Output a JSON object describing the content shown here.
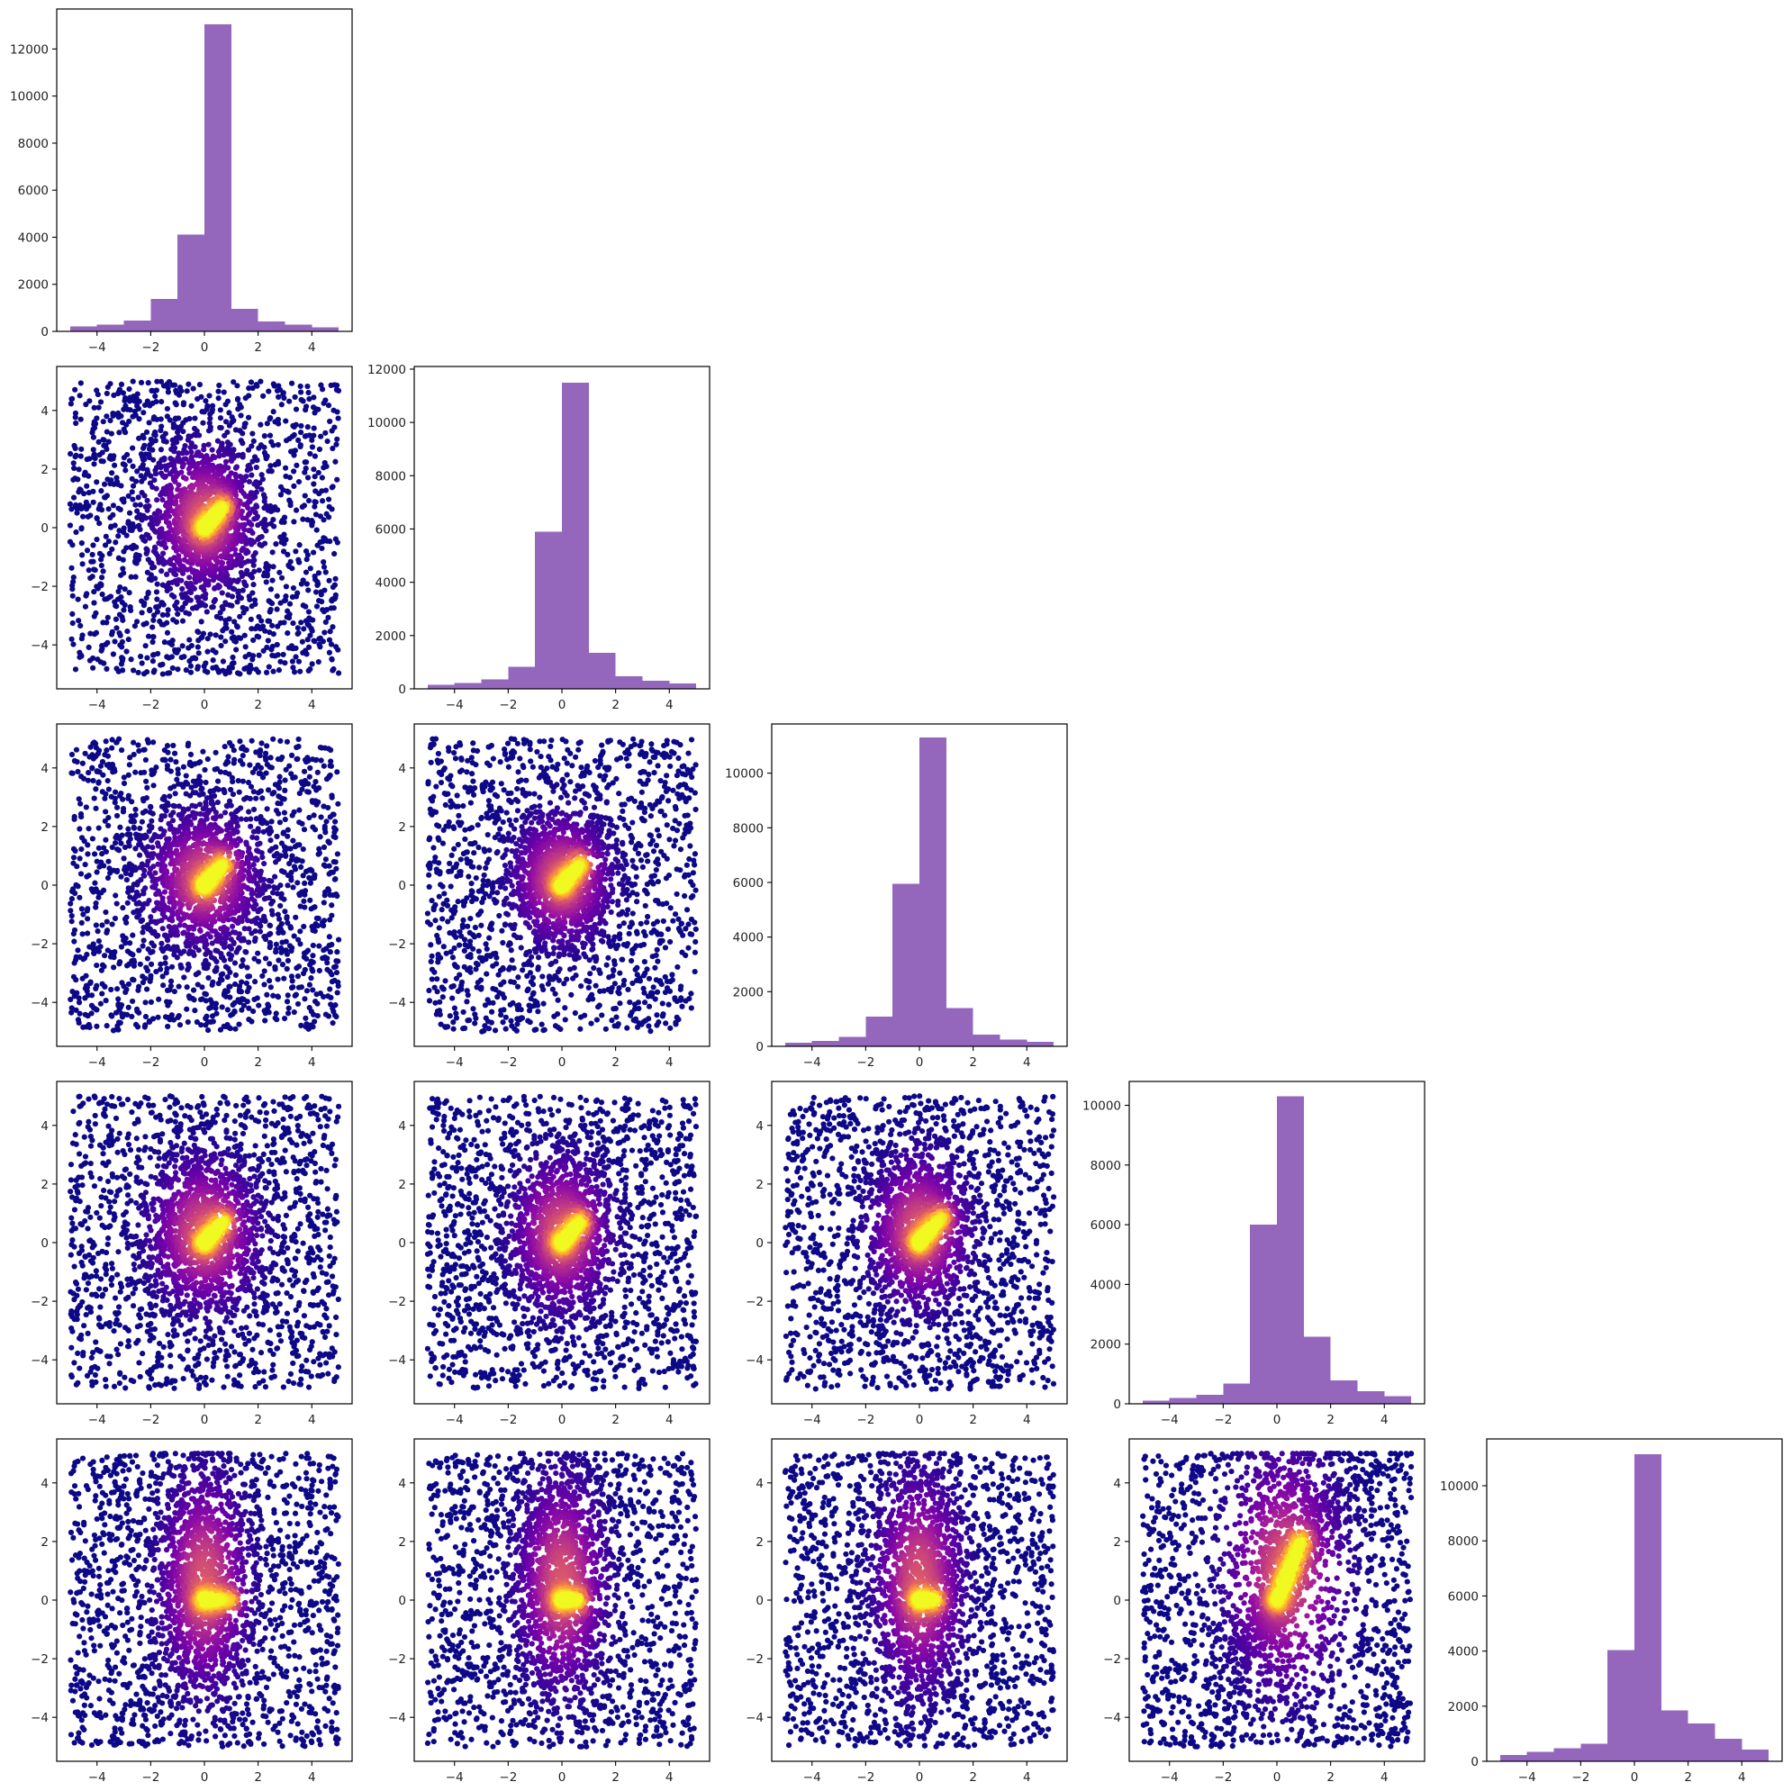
{
  "figure": {
    "kind": "corner-plot",
    "grid": "5x5 lower triangle"
  },
  "colors": {
    "hist_fill": "#9467bd",
    "scatter_colormap": "plasma",
    "colormap_stops": [
      "#0d0887",
      "#41049d",
      "#6a00a8",
      "#8f0da4",
      "#b12a90",
      "#cc4778",
      "#e16462",
      "#f2844b",
      "#fca636",
      "#fcce25",
      "#f0f921"
    ]
  },
  "chart_data": [
    {
      "panel": "row1-col1",
      "type": "bar",
      "subtype": "histogram",
      "bin_edges": [
        -5,
        -4,
        -3,
        -2,
        -1,
        0,
        1,
        2,
        3,
        4,
        5
      ],
      "values": [
        210,
        290,
        450,
        1380,
        4120,
        13050,
        950,
        420,
        280,
        170
      ],
      "xlim": [
        -5.5,
        5.5
      ],
      "ylim": [
        0,
        13700
      ],
      "xticks": [
        -4,
        -2,
        0,
        2,
        4
      ],
      "xtick_labels": [
        "−4",
        "−2",
        "0",
        "2",
        "4"
      ],
      "yticks": [
        0,
        2000,
        4000,
        6000,
        8000,
        10000,
        12000
      ],
      "ytick_labels": [
        "0",
        "2000",
        "4000",
        "6000",
        "8000",
        "10000",
        "12000"
      ]
    },
    {
      "panel": "row2-col1",
      "type": "scatter",
      "xlim": [
        -5.5,
        5.5
      ],
      "ylim": [
        -5.5,
        5.5
      ],
      "xticks": [
        -4,
        -2,
        0,
        2,
        4
      ],
      "xtick_labels": [
        "−4",
        "−2",
        "0",
        "2",
        "4"
      ],
      "yticks": [
        -4,
        -2,
        0,
        2,
        4
      ],
      "ytick_labels": [
        "−4",
        "−2",
        "0",
        "2",
        "4"
      ],
      "density": {
        "cx": 0.0,
        "cy": 0.3,
        "sx": 1.0,
        "sy": 1.3,
        "kink": {
          "dir": [
            1,
            1
          ],
          "length": 1.0
        }
      }
    },
    {
      "panel": "row2-col2",
      "type": "bar",
      "subtype": "histogram",
      "bin_edges": [
        -5,
        -4,
        -3,
        -2,
        -1,
        0,
        1,
        2,
        3,
        4,
        5
      ],
      "values": [
        160,
        220,
        360,
        820,
        5900,
        11500,
        1350,
        480,
        300,
        210
      ],
      "xlim": [
        -5.5,
        5.5
      ],
      "ylim": [
        0,
        12100
      ],
      "xticks": [
        -4,
        -2,
        0,
        2,
        4
      ],
      "xtick_labels": [
        "−4",
        "−2",
        "0",
        "2",
        "4"
      ],
      "yticks": [
        0,
        2000,
        4000,
        6000,
        8000,
        10000,
        12000
      ],
      "ytick_labels": [
        "0",
        "2000",
        "4000",
        "6000",
        "8000",
        "10000",
        "12000"
      ]
    },
    {
      "panel": "row3-col1",
      "type": "scatter",
      "xlim": [
        -5.5,
        5.5
      ],
      "ylim": [
        -5.5,
        5.5
      ],
      "xticks": [
        -4,
        -2,
        0,
        2,
        4
      ],
      "xtick_labels": [
        "−4",
        "−2",
        "0",
        "2",
        "4"
      ],
      "yticks": [
        -4,
        -2,
        0,
        2,
        4
      ],
      "ytick_labels": [
        "−4",
        "−2",
        "0",
        "2",
        "4"
      ],
      "density": {
        "cx": 0.0,
        "cy": 0.2,
        "sx": 1.1,
        "sy": 1.2,
        "kink": {
          "dir": [
            1,
            1
          ],
          "length": 1.0
        }
      }
    },
    {
      "panel": "row3-col2",
      "type": "scatter",
      "xlim": [
        -5.5,
        5.5
      ],
      "ylim": [
        -5.5,
        5.5
      ],
      "xticks": [
        -4,
        -2,
        0,
        2,
        4
      ],
      "xtick_labels": [
        "−4",
        "−2",
        "0",
        "2",
        "4"
      ],
      "yticks": [
        -4,
        -2,
        0,
        2,
        4
      ],
      "ytick_labels": [
        "−4",
        "−2",
        "0",
        "2",
        "4"
      ],
      "density": {
        "cx": 0.0,
        "cy": 0.2,
        "sx": 1.0,
        "sy": 1.2,
        "kink": {
          "dir": [
            1,
            1
          ],
          "length": 1.0
        }
      }
    },
    {
      "panel": "row3-col3",
      "type": "bar",
      "subtype": "histogram",
      "bin_edges": [
        -5,
        -4,
        -3,
        -2,
        -1,
        0,
        1,
        2,
        3,
        4,
        5
      ],
      "values": [
        130,
        200,
        340,
        1080,
        5950,
        11300,
        1400,
        430,
        240,
        160
      ],
      "xlim": [
        -5.5,
        5.5
      ],
      "ylim": [
        0,
        11800
      ],
      "xticks": [
        -4,
        -2,
        0,
        2,
        4
      ],
      "xtick_labels": [
        "−4",
        "−2",
        "0",
        "2",
        "4"
      ],
      "yticks": [
        0,
        2000,
        4000,
        6000,
        8000,
        10000
      ],
      "ytick_labels": [
        "0",
        "2000",
        "4000",
        "6000",
        "8000",
        "10000"
      ]
    },
    {
      "panel": "row4-col1",
      "type": "scatter",
      "xlim": [
        -5.5,
        5.5
      ],
      "ylim": [
        -5.5,
        5.5
      ],
      "xticks": [
        -4,
        -2,
        0,
        2,
        4
      ],
      "xtick_labels": [
        "−4",
        "−2",
        "0",
        "2",
        "4"
      ],
      "yticks": [
        -4,
        -2,
        0,
        2,
        4
      ],
      "ytick_labels": [
        "−4",
        "−2",
        "0",
        "2",
        "4"
      ],
      "density": {
        "cx": 0.0,
        "cy": 0.3,
        "sx": 1.1,
        "sy": 1.4,
        "kink": {
          "dir": [
            1,
            1
          ],
          "length": 1.0
        }
      }
    },
    {
      "panel": "row4-col2",
      "type": "scatter",
      "xlim": [
        -5.5,
        5.5
      ],
      "ylim": [
        -5.5,
        5.5
      ],
      "xticks": [
        -4,
        -2,
        0,
        2,
        4
      ],
      "xtick_labels": [
        "−4",
        "−2",
        "0",
        "2",
        "4"
      ],
      "yticks": [
        -4,
        -2,
        0,
        2,
        4
      ],
      "ytick_labels": [
        "−4",
        "−2",
        "0",
        "2",
        "4"
      ],
      "density": {
        "cx": 0.0,
        "cy": 0.3,
        "sx": 1.0,
        "sy": 1.4,
        "kink": {
          "dir": [
            1,
            1
          ],
          "length": 1.0
        }
      }
    },
    {
      "panel": "row4-col3",
      "type": "scatter",
      "xlim": [
        -5.5,
        5.5
      ],
      "ylim": [
        -5.5,
        5.5
      ],
      "xticks": [
        -4,
        -2,
        0,
        2,
        4
      ],
      "xtick_labels": [
        "−4",
        "−2",
        "0",
        "2",
        "4"
      ],
      "yticks": [
        -4,
        -2,
        0,
        2,
        4
      ],
      "ytick_labels": [
        "−4",
        "−2",
        "0",
        "2",
        "4"
      ],
      "density": {
        "cx": 0.0,
        "cy": 0.4,
        "sx": 1.0,
        "sy": 1.4,
        "kink": {
          "dir": [
            1,
            1
          ],
          "length": 1.2
        }
      }
    },
    {
      "panel": "row4-col4",
      "type": "bar",
      "subtype": "histogram",
      "bin_edges": [
        -5,
        -4,
        -3,
        -2,
        -1,
        0,
        1,
        2,
        3,
        4,
        5
      ],
      "values": [
        110,
        190,
        300,
        680,
        6000,
        10300,
        2250,
        780,
        420,
        250
      ],
      "xlim": [
        -5.5,
        5.5
      ],
      "ylim": [
        0,
        10800
      ],
      "xticks": [
        -4,
        -2,
        0,
        2,
        4
      ],
      "xtick_labels": [
        "−4",
        "−2",
        "0",
        "2",
        "4"
      ],
      "yticks": [
        0,
        2000,
        4000,
        6000,
        8000,
        10000
      ],
      "ytick_labels": [
        "0",
        "2000",
        "4000",
        "6000",
        "8000",
        "10000"
      ]
    },
    {
      "panel": "row5-col1",
      "type": "scatter",
      "xlim": [
        -5.5,
        5.5
      ],
      "ylim": [
        -5.5,
        5.5
      ],
      "xticks": [
        -4,
        -2,
        0,
        2,
        4
      ],
      "xtick_labels": [
        "−4",
        "−2",
        "0",
        "2",
        "4"
      ],
      "yticks": [
        -4,
        -2,
        0,
        2,
        4
      ],
      "ytick_labels": [
        "−4",
        "−2",
        "0",
        "2",
        "4"
      ],
      "density": {
        "cx": 0.0,
        "cy": 0.6,
        "sx": 0.9,
        "sy": 2.0,
        "kink": {
          "dir": [
            1,
            0
          ],
          "length": 1.0
        }
      }
    },
    {
      "panel": "row5-col2",
      "type": "scatter",
      "xlim": [
        -5.5,
        5.5
      ],
      "ylim": [
        -5.5,
        5.5
      ],
      "xticks": [
        -4,
        -2,
        0,
        2,
        4
      ],
      "xtick_labels": [
        "−4",
        "−2",
        "0",
        "2",
        "4"
      ],
      "yticks": [
        -4,
        -2,
        0,
        2,
        4
      ],
      "ytick_labels": [
        "−4",
        "−2",
        "0",
        "2",
        "4"
      ],
      "density": {
        "cx": 0.0,
        "cy": 0.6,
        "sx": 0.9,
        "sy": 2.0,
        "kink": {
          "dir": [
            1,
            0
          ],
          "length": 0.6
        }
      }
    },
    {
      "panel": "row5-col3",
      "type": "scatter",
      "xlim": [
        -5.5,
        5.5
      ],
      "ylim": [
        -5.5,
        5.5
      ],
      "xticks": [
        -4,
        -2,
        0,
        2,
        4
      ],
      "xtick_labels": [
        "−4",
        "−2",
        "0",
        "2",
        "4"
      ],
      "yticks": [
        -4,
        -2,
        0,
        2,
        4
      ],
      "ytick_labels": [
        "−4",
        "−2",
        "0",
        "2",
        "4"
      ],
      "density": {
        "cx": 0.0,
        "cy": 0.6,
        "sx": 0.9,
        "sy": 2.0,
        "kink": {
          "dir": [
            1,
            0
          ],
          "length": 0.6
        }
      }
    },
    {
      "panel": "row5-col4",
      "type": "scatter",
      "xlim": [
        -5.5,
        5.5
      ],
      "ylim": [
        -5.5,
        5.5
      ],
      "xticks": [
        -4,
        -2,
        0,
        2,
        4
      ],
      "xtick_labels": [
        "−4",
        "−2",
        "0",
        "2",
        "4"
      ],
      "yticks": [
        -4,
        -2,
        0,
        2,
        4
      ],
      "ytick_labels": [
        "−4",
        "−2",
        "0",
        "2",
        "4"
      ],
      "density": {
        "cx": 0.3,
        "cy": 1.0,
        "sx": 1.2,
        "sy": 2.2,
        "kink": {
          "dir": [
            1,
            2.2
          ],
          "length": 2.2
        },
        "shape": "v"
      }
    },
    {
      "panel": "row5-col5",
      "type": "bar",
      "subtype": "histogram",
      "bin_edges": [
        -5,
        -4,
        -3,
        -2,
        -1,
        0,
        1,
        2,
        3,
        4,
        5
      ],
      "values": [
        230,
        340,
        470,
        640,
        4030,
        11150,
        1850,
        1380,
        820,
        420
      ],
      "xlim": [
        -5.5,
        5.5
      ],
      "ylim": [
        0,
        11700
      ],
      "xticks": [
        -4,
        -2,
        0,
        2,
        4
      ],
      "xtick_labels": [
        "−4",
        "−2",
        "0",
        "2",
        "4"
      ],
      "yticks": [
        0,
        2000,
        4000,
        6000,
        8000,
        10000
      ],
      "ytick_labels": [
        "0",
        "2000",
        "4000",
        "6000",
        "8000",
        "10000"
      ]
    }
  ]
}
